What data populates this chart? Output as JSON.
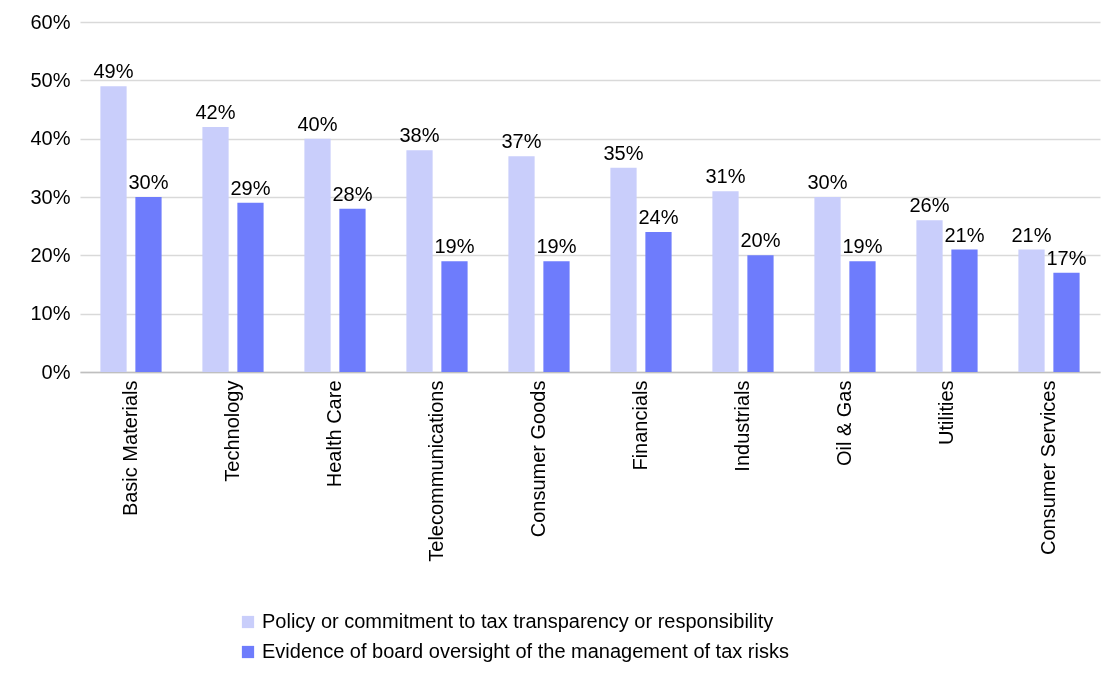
{
  "chart_data": {
    "type": "bar",
    "categories": [
      "Basic Materials",
      "Technology",
      "Health Care",
      "Telecommunications",
      "Consumer Goods",
      "Financials",
      "Industrials",
      "Oil & Gas",
      "Utilities",
      "Consumer Services"
    ],
    "series": [
      {
        "name": "Policy or commitment to tax transparency or responsibility",
        "color": "#c9cefb",
        "values": [
          49,
          42,
          40,
          38,
          37,
          35,
          31,
          30,
          26,
          21
        ],
        "value_labels": [
          "49%",
          "42%",
          "40%",
          "38%",
          "37%",
          "35%",
          "31%",
          "30%",
          "26%",
          "21%"
        ]
      },
      {
        "name": "Evidence of board oversight of the management of tax risks",
        "color": "#6e7cfc",
        "values": [
          30,
          29,
          28,
          19,
          19,
          24,
          20,
          19,
          21,
          17
        ],
        "value_labels": [
          "30%",
          "29%",
          "28%",
          "19%",
          "19%",
          "24%",
          "20%",
          "19%",
          "21%",
          "17%"
        ]
      }
    ],
    "ylim": [
      0,
      60
    ],
    "yticks": [
      {
        "value": 0,
        "label": "0%"
      },
      {
        "value": 10,
        "label": "10%"
      },
      {
        "value": 20,
        "label": "20%"
      },
      {
        "value": 30,
        "label": "30%"
      },
      {
        "value": 40,
        "label": "40%"
      },
      {
        "value": 50,
        "label": "50%"
      },
      {
        "value": 60,
        "label": "60%"
      }
    ],
    "grid": "y",
    "legend": "bottom"
  }
}
